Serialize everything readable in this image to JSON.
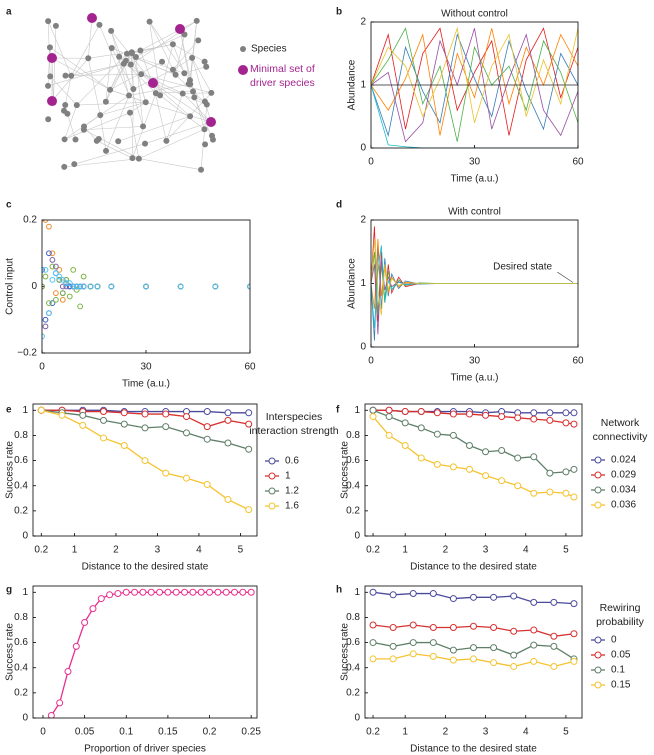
{
  "chart_data": [
    {
      "type": "network",
      "panel_label": "a",
      "legend": [
        {
          "label": "Species",
          "color": "#808080"
        },
        {
          "label": "Minimal set of driver species",
          "color": "#a3248f"
        }
      ]
    },
    {
      "type": "line",
      "panel_label": "b",
      "title": "Without control",
      "x_label": "Time (a.u.)",
      "y_label": "Abundance",
      "x": [
        0,
        5,
        10,
        15,
        20,
        25,
        30,
        35,
        40,
        45,
        50,
        55,
        60
      ],
      "xlim": [
        0,
        60
      ],
      "xticks": [
        0,
        30,
        60
      ],
      "ylim": [
        0,
        2
      ],
      "yticks": [
        0,
        1,
        2
      ],
      "series": [
        {
          "color": "#e41a1c",
          "values": [
            1,
            1.8,
            0.3,
            1.5,
            1.9,
            0.6,
            1.2,
            1.7,
            0.2,
            1.4,
            1.9,
            0.8,
            1.6
          ]
        },
        {
          "color": "#377eb8",
          "values": [
            1,
            0.2,
            1.6,
            0.9,
            0.4,
            1.8,
            1.1,
            0.5,
            1.7,
            0.9,
            0.3,
            1.5,
            1.0
          ]
        },
        {
          "color": "#4daf4a",
          "values": [
            1,
            1.4,
            1.9,
            0.7,
            1.3,
            0.1,
            1.6,
            1.0,
            1.3,
            0.6,
            1.7,
            1.2,
            0.4
          ]
        },
        {
          "color": "#ff7f00",
          "values": [
            1,
            0.6,
            1.1,
            1.8,
            0.2,
            1.5,
            0.8,
            1.9,
            0.7,
            1.6,
            1.0,
            1.8,
            1.3
          ]
        },
        {
          "color": "#984ea3",
          "values": [
            1,
            1.2,
            0.1,
            0.4,
            1.7,
            1.0,
            1.9,
            0.3,
            1.1,
            1.8,
            0.6,
            0.2,
            0.9
          ]
        },
        {
          "color": "#17becf",
          "values": [
            1,
            0.05,
            0.02,
            0,
            0,
            0,
            0,
            0,
            0,
            0,
            0,
            0,
            0
          ]
        },
        {
          "color": "#e6c229",
          "values": [
            1,
            1.6,
            1.3,
            0.5,
            1.1,
            1.9,
            0.4,
            1.3,
            1.8,
            0.5,
            1.4,
            0.7,
            1.9
          ]
        },
        {
          "color": "#222222",
          "values": [
            1,
            1,
            1,
            1,
            1,
            1,
            1,
            1,
            1,
            1,
            1,
            1,
            1
          ]
        }
      ]
    },
    {
      "type": "scatter",
      "panel_label": "c",
      "x_label": "Time (a.u.)",
      "y_label": "Control input",
      "x": [
        0,
        1,
        2,
        3,
        4,
        5,
        6,
        7,
        8,
        9,
        10,
        11,
        12,
        14,
        16,
        20,
        30,
        40,
        50,
        60
      ],
      "xlim": [
        0,
        60
      ],
      "xticks": [
        0,
        30,
        60
      ],
      "ylim": [
        -0.2,
        0.2
      ],
      "yticks": [
        {
          "value": -0.2,
          "label": "−0.2"
        },
        0,
        0.2
      ],
      "series": [
        {
          "color": "#f08c2a",
          "values": [
            0,
            0.2,
            0.18,
            0.1,
            -0.02,
            0.05,
            -0.04,
            0.02,
            0,
            0,
            0,
            0,
            0,
            0,
            0,
            0,
            0,
            0,
            0,
            0
          ]
        },
        {
          "color": "#7b5ea7",
          "values": [
            0,
            -0.12,
            -0.08,
            0.08,
            0.06,
            0.02,
            0,
            0,
            0,
            0,
            0,
            0,
            0,
            0,
            0,
            0,
            0,
            0,
            0,
            0
          ]
        },
        {
          "color": "#3a5fcd",
          "values": [
            0.05,
            -0.1,
            0.1,
            -0.05,
            0.04,
            0.02,
            -0.02,
            0.01,
            0,
            0,
            0,
            0,
            0,
            0,
            0,
            0,
            0,
            0,
            0,
            0
          ]
        },
        {
          "color": "#7cb342",
          "values": [
            0,
            0.03,
            -0.05,
            0.06,
            -0.04,
            0.02,
            -0.02,
            0.02,
            -0.03,
            0.05,
            -0.01,
            -0.06,
            0.03,
            0,
            0,
            0,
            0,
            0,
            0,
            0
          ]
        },
        {
          "color": "#4fc3f7",
          "values": [
            -0.15,
            0.05,
            -0.08,
            0.02,
            0.04,
            0.03,
            0.02,
            0.01,
            0.01,
            0,
            0,
            0,
            0,
            0,
            0,
            0,
            0,
            0,
            0,
            0
          ]
        }
      ]
    },
    {
      "type": "line",
      "panel_label": "d",
      "title": "With control",
      "x_label": "Time (a.u.)",
      "y_label": "Abundance",
      "annotation": "Desired state",
      "x": [
        0,
        1,
        2,
        3,
        4,
        5,
        6,
        8,
        10,
        14,
        20,
        30,
        60
      ],
      "xlim": [
        0,
        60
      ],
      "xticks": [
        0,
        30,
        60
      ],
      "ylim": [
        0,
        2
      ],
      "yticks": [
        0,
        1,
        2
      ],
      "series": [
        {
          "color": "#e41a1c",
          "values": [
            1,
            1.9,
            0.4,
            1.5,
            0.7,
            1.3,
            0.85,
            1.1,
            0.95,
            1.0,
            1,
            1,
            1
          ]
        },
        {
          "color": "#377eb8",
          "values": [
            1,
            0.1,
            1.6,
            0.6,
            1.4,
            0.8,
            1.15,
            0.92,
            1.04,
            0.99,
            1,
            1,
            1
          ]
        },
        {
          "color": "#4daf4a",
          "values": [
            1,
            1.5,
            0.5,
            1.3,
            0.75,
            1.2,
            0.9,
            1.06,
            0.97,
            1.01,
            1,
            1,
            1
          ]
        },
        {
          "color": "#ff7f00",
          "values": [
            1,
            0.6,
            1.7,
            0.8,
            1.25,
            0.85,
            1.1,
            0.95,
            1.02,
            1.0,
            1,
            1,
            1
          ]
        },
        {
          "color": "#984ea3",
          "values": [
            1,
            1.3,
            0.2,
            1.4,
            0.9,
            1.1,
            0.95,
            1.03,
            0.99,
            1,
            1,
            1,
            1
          ]
        },
        {
          "color": "#17becf",
          "values": [
            1,
            0.3,
            1.2,
            1.6,
            0.7,
            1.05,
            0.9,
            1.02,
            0.98,
            1,
            1,
            1,
            1
          ]
        },
        {
          "color": "#e6c229",
          "values": [
            1,
            1.7,
            0.9,
            0.5,
            1.3,
            0.9,
            1.08,
            0.97,
            1.01,
            1,
            1,
            1,
            1
          ]
        }
      ]
    },
    {
      "type": "line",
      "panel_label": "e",
      "markers": true,
      "x_label": "Distance to the desired state",
      "y_label": "Success rate",
      "legend_title": "Interspecies interaction strength",
      "x": [
        0.2,
        0.7,
        1.2,
        1.7,
        2.2,
        2.7,
        3.2,
        3.7,
        4.2,
        4.7,
        5.2
      ],
      "xlim": [
        0,
        5.4
      ],
      "xticks": [
        0.2,
        1,
        2,
        3,
        4,
        5
      ],
      "ylim": [
        0,
        1.05
      ],
      "yticks": [
        0,
        0.2,
        0.4,
        0.6,
        0.8,
        1
      ],
      "series": [
        {
          "name": "0.6",
          "color": "#4a4a9c",
          "values": [
            1,
            1,
            1,
            1,
            0.99,
            0.99,
            0.99,
            0.99,
            0.99,
            0.98,
            0.98
          ]
        },
        {
          "name": "1",
          "color": "#d7302f",
          "values": [
            1,
            1,
            0.99,
            0.99,
            0.98,
            0.97,
            0.97,
            0.95,
            0.87,
            0.92,
            0.89
          ]
        },
        {
          "name": "1.2",
          "color": "#5f7f68",
          "values": [
            1,
            0.98,
            0.96,
            0.92,
            0.89,
            0.86,
            0.87,
            0.82,
            0.77,
            0.74,
            0.69
          ]
        },
        {
          "name": "1.6",
          "color": "#f5c330",
          "values": [
            1,
            0.96,
            0.88,
            0.78,
            0.72,
            0.6,
            0.5,
            0.46,
            0.41,
            0.29,
            0.21
          ]
        }
      ]
    },
    {
      "type": "line",
      "panel_label": "f",
      "markers": true,
      "x_label": "Distance to the desired state",
      "y_label": "Success rate",
      "legend_title": "Network connectivity",
      "x": [
        0.2,
        0.6,
        1,
        1.4,
        1.8,
        2.2,
        2.6,
        3,
        3.4,
        3.8,
        4.2,
        4.6,
        5,
        5.2
      ],
      "xlim": [
        0,
        5.4
      ],
      "xticks": [
        0.2,
        1,
        2,
        3,
        4,
        5
      ],
      "ylim": [
        0,
        1.05
      ],
      "yticks": [
        0,
        0.2,
        0.4,
        0.6,
        0.8,
        1
      ],
      "series": [
        {
          "name": "0.024",
          "color": "#4a4a9c",
          "values": [
            1,
            1,
            0.99,
            0.99,
            0.99,
            0.99,
            0.99,
            0.98,
            0.99,
            0.98,
            0.98,
            0.98,
            0.98,
            0.98
          ]
        },
        {
          "name": "0.029",
          "color": "#d7302f",
          "values": [
            1,
            1,
            0.99,
            0.99,
            0.98,
            0.97,
            0.97,
            0.96,
            0.95,
            0.94,
            0.93,
            0.92,
            0.9,
            0.89
          ]
        },
        {
          "name": "0.034",
          "color": "#5f7f68",
          "values": [
            1,
            0.95,
            0.9,
            0.86,
            0.81,
            0.8,
            0.72,
            0.67,
            0.68,
            0.62,
            0.63,
            0.5,
            0.51,
            0.53
          ]
        },
        {
          "name": "0.036",
          "color": "#f5c330",
          "values": [
            0.95,
            0.8,
            0.72,
            0.62,
            0.57,
            0.55,
            0.53,
            0.48,
            0.44,
            0.4,
            0.34,
            0.35,
            0.34,
            0.31
          ]
        }
      ]
    },
    {
      "type": "line",
      "panel_label": "g",
      "markers": true,
      "x_label": "Proportion of driver species",
      "y_label": "Success rate",
      "x": [
        0.01,
        0.02,
        0.03,
        0.04,
        0.05,
        0.06,
        0.07,
        0.08,
        0.09,
        0.1,
        0.11,
        0.12,
        0.13,
        0.14,
        0.15,
        0.16,
        0.17,
        0.18,
        0.19,
        0.2,
        0.21,
        0.22,
        0.23,
        0.24,
        0.25
      ],
      "xlim": [
        -0.012,
        0.257
      ],
      "xticks": [
        0,
        0.05,
        0.1,
        0.15,
        0.2,
        0.25
      ],
      "ylim": [
        0,
        1.05
      ],
      "yticks": [
        0,
        0.2,
        0.4,
        0.6,
        0.8,
        1
      ],
      "series": [
        {
          "color": "#e8308f",
          "values": [
            0.02,
            0.12,
            0.37,
            0.57,
            0.76,
            0.87,
            0.95,
            0.98,
            0.99,
            1,
            1,
            1,
            1,
            1,
            1,
            1,
            1,
            1,
            1,
            1,
            1,
            1,
            1,
            1,
            1
          ]
        }
      ]
    },
    {
      "type": "line",
      "panel_label": "h",
      "markers": true,
      "x_label": "Distance to the desired state",
      "y_label": "Success rate",
      "legend_title": "Rewiring probability",
      "x": [
        0.2,
        0.7,
        1.2,
        1.7,
        2.2,
        2.7,
        3.2,
        3.7,
        4.2,
        4.7,
        5.2
      ],
      "xlim": [
        0,
        5.4
      ],
      "xticks": [
        0.2,
        1,
        2,
        3,
        4,
        5
      ],
      "ylim": [
        0,
        1.05
      ],
      "yticks": [
        0,
        0.2,
        0.4,
        0.6,
        0.8,
        1
      ],
      "series": [
        {
          "name": "0",
          "color": "#4a4a9c",
          "values": [
            1,
            0.98,
            0.99,
            0.99,
            0.95,
            0.96,
            0.96,
            0.97,
            0.92,
            0.92,
            0.91
          ]
        },
        {
          "name": "0.05",
          "color": "#d7302f",
          "values": [
            0.74,
            0.72,
            0.74,
            0.72,
            0.72,
            0.73,
            0.72,
            0.69,
            0.7,
            0.65,
            0.67
          ]
        },
        {
          "name": "0.1",
          "color": "#5f7f68",
          "values": [
            0.6,
            0.57,
            0.6,
            0.6,
            0.54,
            0.56,
            0.56,
            0.5,
            0.58,
            0.57,
            0.47
          ]
        },
        {
          "name": "0.15",
          "color": "#f5c330",
          "values": [
            0.47,
            0.47,
            0.51,
            0.49,
            0.46,
            0.47,
            0.44,
            0.41,
            0.45,
            0.41,
            0.45
          ]
        }
      ]
    }
  ]
}
